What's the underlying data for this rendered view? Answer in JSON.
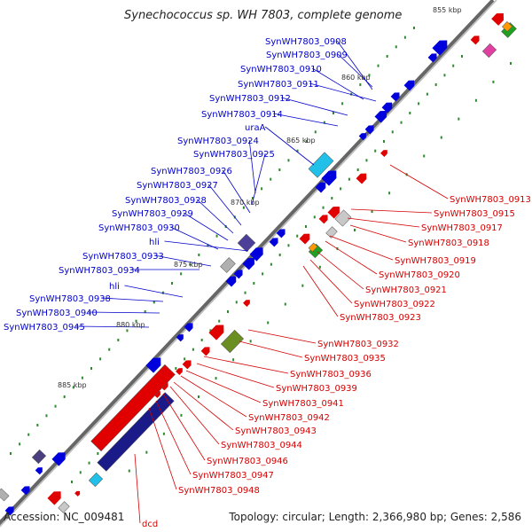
{
  "title": "Synechococcus sp. WH 7803, complete genome",
  "footer": {
    "accession": "Accession: NC_009481",
    "summary": "Topology: circular; Length: 2,366,980 bp; Genes: 2,586"
  },
  "colors": {
    "backbone": "#808080",
    "forward_strand_labels": "#0000cc",
    "reverse_strand_labels": "#d40000",
    "gc_ticks": "#2e8b2e"
  },
  "position_ticks": [
    "855 kbp",
    "860 kbp",
    "865 kbp",
    "870 kbp",
    "875 kbp",
    "880 kbp",
    "885 kbp"
  ],
  "forward_gene_labels": [
    "SynWH7803_0908",
    "SynWH7803_0909",
    "SynWH7803_0910",
    "SynWH7803_0911",
    "SynWH7803_0912",
    "SynWH7803_0914",
    "uraA",
    "SynWH7803_0924",
    "SynWH7803_0925",
    "SynWH7803_0926",
    "SynWH7803_0927",
    "SynWH7803_0928",
    "SynWH7803_0929",
    "SynWH7803_0930",
    "hli",
    "SynWH7803_0933",
    "SynWH7803_0934",
    "hli",
    "SynWH7803_0938",
    "SynWH7803_0940",
    "SynWH7803_0945"
  ],
  "reverse_gene_labels": [
    "SynWH7803_0913",
    "SynWH7803_0915",
    "SynWH7803_0917",
    "SynWH7803_0918",
    "SynWH7803_0919",
    "SynWH7803_0920",
    "SynWH7803_0921",
    "SynWH7803_0922",
    "SynWH7803_0923",
    "SynWH7803_0932",
    "SynWH7803_0935",
    "SynWH7803_0936",
    "SynWH7803_0939",
    "SynWH7803_0941",
    "SynWH7803_0942",
    "SynWH7803_0943",
    "SynWH7803_0944",
    "SynWH7803_0946",
    "SynWH7803_0947",
    "SynWH7803_0948",
    "dcd"
  ]
}
